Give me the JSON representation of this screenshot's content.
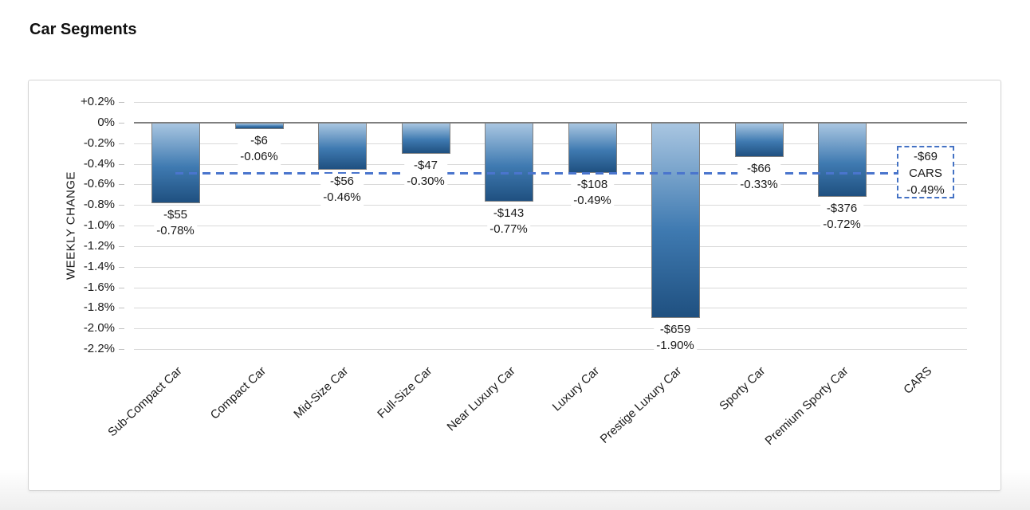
{
  "page": {
    "title": "Car Segments"
  },
  "chart_data": {
    "type": "bar",
    "title": "Car Segments",
    "xlabel": "",
    "ylabel": "WEEKLY CHANGE",
    "ylim": [
      0.2,
      -2.2
    ],
    "y_tick_step_pct": 0.2,
    "y_tick_labels": [
      "+0.2%",
      "0%",
      "-0.2%",
      "-0.4%",
      "-0.6%",
      "-0.8%",
      "-1.0%",
      "-1.2%",
      "-1.4%",
      "-1.6%",
      "-1.8%",
      "-2.0%",
      "-2.2%"
    ],
    "grid": true,
    "legend": false,
    "categories": [
      "Sub-Compact Car",
      "Compact Car",
      "Mid-Size Car",
      "Full-Size Car",
      "Near Luxury Car",
      "Luxury Car",
      "Prestige Luxury Car",
      "Sporty Car",
      "Premium Sporty Car",
      "CARS"
    ],
    "bars": [
      {
        "category": "Sub-Compact Car",
        "value_pct": -0.78,
        "label_usd": "-$55",
        "label_pct": "-0.78%"
      },
      {
        "category": "Compact Car",
        "value_pct": -0.06,
        "label_usd": "-$6",
        "label_pct": "-0.06%"
      },
      {
        "category": "Mid-Size Car",
        "value_pct": -0.46,
        "label_usd": "-$56",
        "label_pct": "-0.46%"
      },
      {
        "category": "Full-Size Car",
        "value_pct": -0.3,
        "label_usd": "-$47",
        "label_pct": "-0.30%"
      },
      {
        "category": "Near Luxury Car",
        "value_pct": -0.77,
        "label_usd": "-$143",
        "label_pct": "-0.77%"
      },
      {
        "category": "Luxury Car",
        "value_pct": -0.49,
        "label_usd": "-$108",
        "label_pct": "-0.49%"
      },
      {
        "category": "Prestige Luxury Car",
        "value_pct": -1.9,
        "label_usd": "-$659",
        "label_pct": "-1.90%"
      },
      {
        "category": "Sporty Car",
        "value_pct": -0.33,
        "label_usd": "-$66",
        "label_pct": "-0.33%"
      },
      {
        "category": "Premium Sporty Car",
        "value_pct": -0.72,
        "label_usd": "-$376",
        "label_pct": "-0.72%"
      }
    ],
    "average_annotation": {
      "category": "CARS",
      "value_pct": -0.49,
      "box_lines": [
        "-$69",
        "CARS",
        "-0.49%"
      ],
      "line_style": "dashed"
    }
  },
  "colors": {
    "bar_top": "#a9c6e1",
    "bar_mid": "#3f7ab1",
    "bar_bottom": "#1f5080",
    "bar_border": "#808080",
    "gridline": "#d9d9d9",
    "zero_line": "#7f7f7f",
    "tick": "#bfbfbf",
    "dash_line": "#4a75cd",
    "box_border": "#4472c4",
    "text": "#1a1a1a",
    "card_border": "#d5d5d5",
    "background": "#ffffff"
  }
}
